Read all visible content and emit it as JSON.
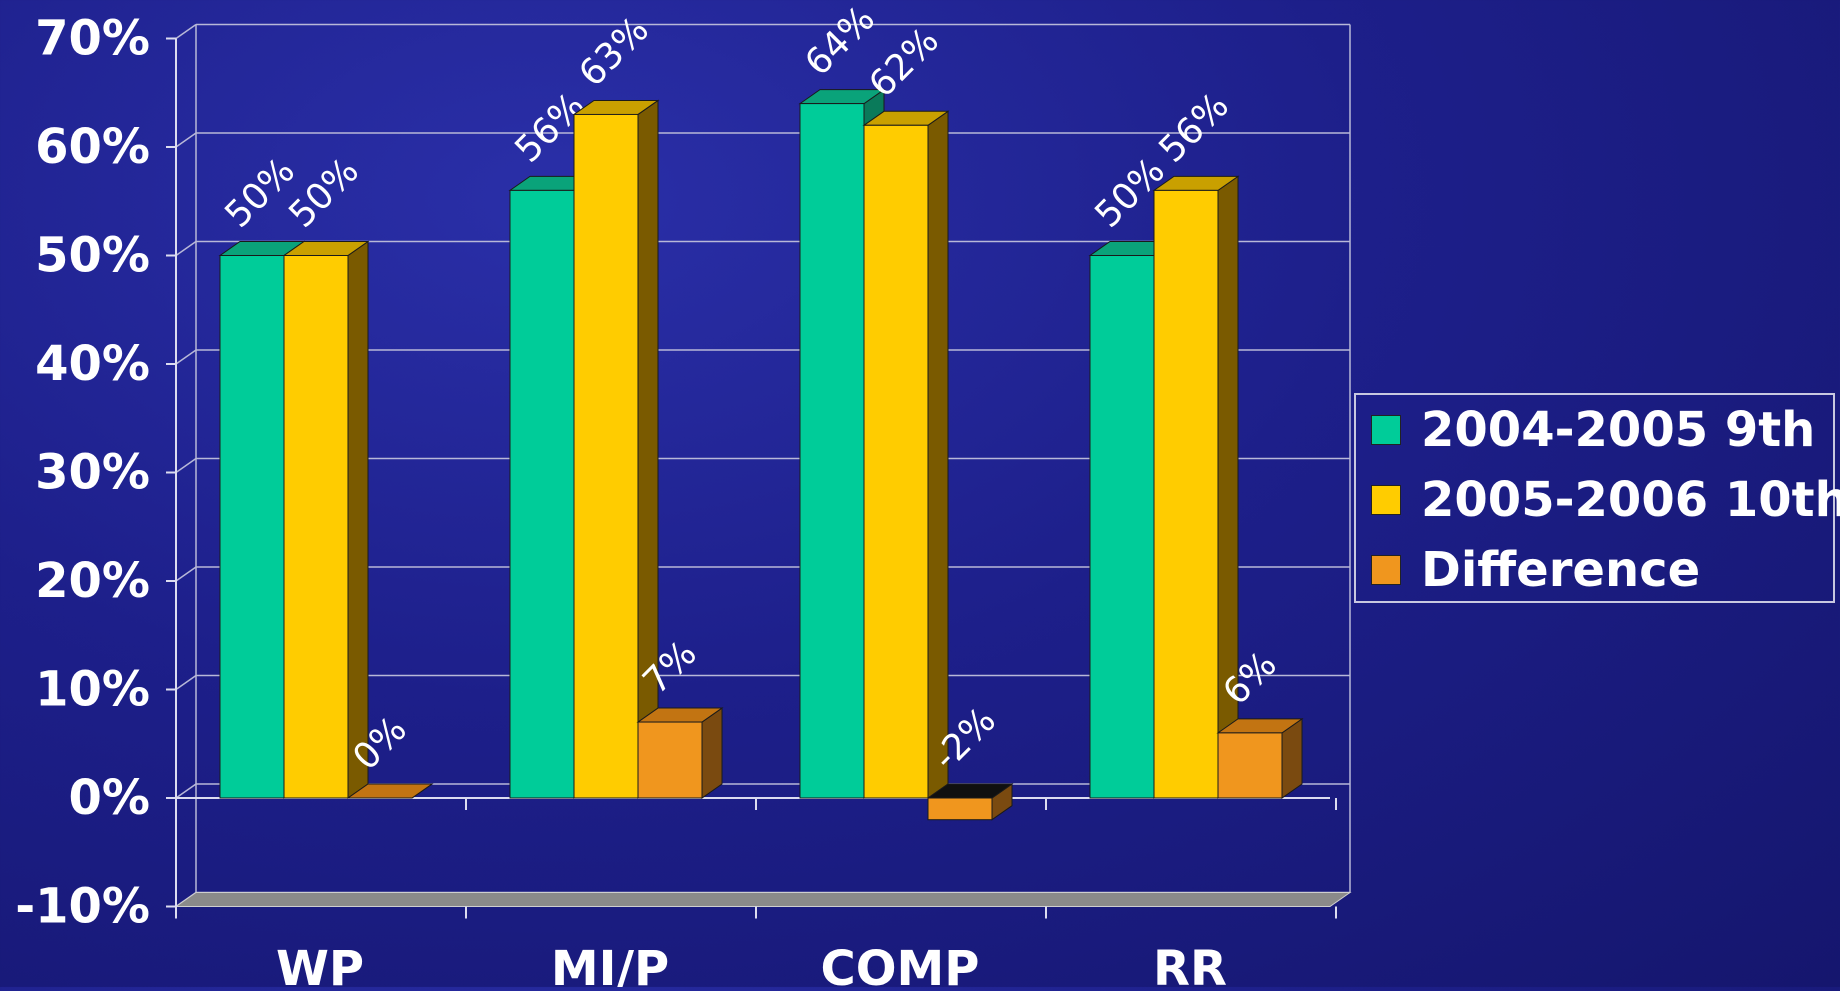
{
  "chart_data": {
    "type": "bar",
    "title": "",
    "xlabel": "",
    "ylabel": "",
    "categories": [
      "WP",
      "MI/P",
      "COMP",
      "RR"
    ],
    "series": [
      {
        "name": "2004-2005 9th",
        "values": [
          50,
          56,
          64,
          50
        ],
        "labels": [
          "50%",
          "56%",
          "64%",
          "50%"
        ]
      },
      {
        "name": "2005-2006 10th",
        "values": [
          50,
          63,
          62,
          56
        ],
        "labels": [
          "50%",
          "63%",
          "62%",
          "56%"
        ]
      },
      {
        "name": "Difference",
        "values": [
          0,
          7,
          -2,
          6
        ],
        "labels": [
          "0%",
          "7%",
          "-2%",
          "6%"
        ]
      }
    ],
    "yticks": [
      "70%",
      "60%",
      "50%",
      "40%",
      "30%",
      "20%",
      "10%",
      "0%",
      "-10%"
    ],
    "ylim": [
      -10,
      70
    ],
    "grid": true,
    "legend_position": "right",
    "colors": [
      "#00cc99",
      "#ffcc00",
      "#f0961e"
    ]
  }
}
